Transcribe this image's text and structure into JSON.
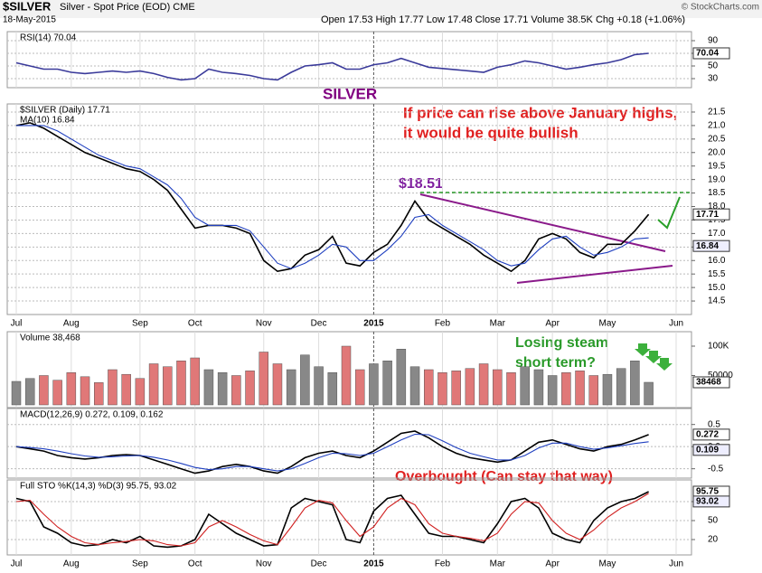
{
  "header": {
    "title": "$SILVER",
    "subtitle": "Silver - Spot Price (EOD) CME",
    "date": "18-May-2015",
    "quote": "Open 17.53  High 17.77  Low 17.48  Close 17.71  Volume 38.5K  Chg +0.18 (+1.06%)",
    "copyright": "© StockCharts.com"
  },
  "chart_data": [
    {
      "type": "line",
      "series": [
        {
          "name": "RSI(14) 70.04",
          "color": "#3a3a9a",
          "values": [
            55,
            50,
            45,
            45,
            40,
            38,
            40,
            42,
            40,
            42,
            38,
            32,
            28,
            30,
            45,
            40,
            38,
            35,
            30,
            28,
            40,
            50,
            52,
            55,
            45,
            45,
            52,
            55,
            62,
            55,
            48,
            46,
            44,
            42,
            40,
            48,
            52,
            58,
            55,
            50,
            45,
            48,
            52,
            55,
            60,
            68,
            70.04,
            null,
            null
          ]
        }
      ],
      "ylim": [
        20,
        100
      ],
      "yticks": [
        90,
        70,
        50,
        30
      ],
      "grid": true
    },
    {
      "type": "line",
      "annotations": [
        "SILVER",
        "If price can rise above January highs,",
        "it would be quite bullish",
        "$18.51"
      ],
      "categories": [
        "Jul",
        null,
        null,
        null,
        "Aug",
        null,
        null,
        null,
        null,
        "Sep",
        null,
        null,
        null,
        "Oct",
        null,
        null,
        null,
        null,
        "Nov",
        null,
        null,
        null,
        "Dec",
        null,
        null,
        null,
        "2015",
        null,
        null,
        null,
        null,
        "Feb",
        null,
        null,
        null,
        "Mar",
        null,
        null,
        null,
        "Apr",
        null,
        null,
        null,
        "May",
        null,
        null,
        null,
        null,
        "Jun"
      ],
      "series": [
        {
          "name": "$SILVER (Daily) 17.71",
          "color": "#000000",
          "values": [
            21.0,
            21.1,
            20.9,
            20.6,
            20.3,
            20.0,
            19.8,
            19.6,
            19.4,
            19.3,
            19.0,
            18.6,
            17.9,
            17.2,
            17.3,
            17.3,
            17.2,
            17.0,
            16.0,
            15.6,
            15.7,
            16.2,
            16.4,
            16.9,
            15.9,
            15.8,
            16.3,
            16.6,
            17.3,
            18.2,
            17.5,
            17.2,
            16.9,
            16.6,
            16.2,
            15.9,
            15.6,
            16.0,
            16.8,
            17.0,
            16.8,
            16.3,
            16.1,
            16.6,
            16.6,
            17.1,
            17.71,
            null,
            null
          ]
        },
        {
          "name": "MA(10) 16.84",
          "color": "#2040c0",
          "values": [
            21.0,
            21.0,
            21.0,
            20.8,
            20.5,
            20.2,
            19.9,
            19.7,
            19.5,
            19.4,
            19.1,
            18.8,
            18.3,
            17.6,
            17.3,
            17.3,
            17.3,
            17.1,
            16.5,
            15.9,
            15.7,
            15.9,
            16.2,
            16.6,
            16.5,
            16.0,
            16.0,
            16.4,
            16.9,
            17.6,
            17.7,
            17.3,
            17.0,
            16.7,
            16.4,
            16.0,
            15.8,
            15.9,
            16.4,
            16.8,
            16.9,
            16.5,
            16.2,
            16.3,
            16.5,
            16.8,
            16.84,
            null,
            null
          ]
        }
      ],
      "ylim": [
        14.1,
        21.7
      ],
      "yticks": [
        {
          "value": 21.5,
          "label": "21.5"
        },
        {
          "value": 21,
          "label": "21.0"
        },
        20.5,
        {
          "value": 20,
          "label": "20.0"
        },
        19.5,
        {
          "value": 19,
          "label": "19.0"
        },
        18.5,
        {
          "value": 18,
          "label": "18.0"
        },
        17.5,
        {
          "value": 17,
          "label": "17.0"
        },
        16.5,
        {
          "value": 16,
          "label": "16.0"
        },
        15.5,
        {
          "value": 15,
          "label": "15.0"
        },
        14.5
      ],
      "grid": true
    },
    {
      "type": "bar",
      "annotations": [
        "Losing steam",
        "short term?"
      ],
      "series": [
        {
          "name": "Volume 38,468",
          "up_color": "#888888",
          "down_color": "#e07878",
          "values": [
            40000,
            45000,
            50000,
            42000,
            55000,
            48000,
            38000,
            60000,
            52000,
            45000,
            70000,
            65000,
            75000,
            80000,
            60000,
            55000,
            50000,
            58000,
            90000,
            70000,
            60000,
            85000,
            65000,
            55000,
            100000,
            60000,
            70000,
            75000,
            95000,
            65000,
            60000,
            55000,
            58000,
            62000,
            70000,
            60000,
            55000,
            65000,
            60000,
            50000,
            55000,
            58000,
            50000,
            52000,
            62000,
            75000,
            38468,
            null,
            null
          ]
        }
      ],
      "ylim": [
        0,
        120000
      ],
      "yticks": [
        {
          "value": 100000,
          "label": "100K"
        },
        50000
      ],
      "grid": false
    },
    {
      "type": "line",
      "series": [
        {
          "name": "MACD(12,26,9) 0.272, 0.109, 0.162",
          "color": "#000000",
          "values": [
            0.0,
            -0.05,
            -0.1,
            -0.2,
            -0.25,
            -0.28,
            -0.25,
            -0.2,
            -0.18,
            -0.2,
            -0.3,
            -0.4,
            -0.5,
            -0.6,
            -0.55,
            -0.45,
            -0.4,
            -0.45,
            -0.55,
            -0.6,
            -0.45,
            -0.25,
            -0.15,
            -0.1,
            -0.2,
            -0.25,
            -0.1,
            0.1,
            0.3,
            0.35,
            0.2,
            0.0,
            -0.15,
            -0.25,
            -0.3,
            -0.35,
            -0.3,
            -0.1,
            0.1,
            0.15,
            0.05,
            -0.05,
            -0.1,
            0.0,
            0.05,
            0.15,
            0.272,
            null,
            null
          ]
        },
        {
          "color": "#2040c0",
          "values": [
            0.0,
            -0.02,
            -0.05,
            -0.1,
            -0.16,
            -0.21,
            -0.24,
            -0.23,
            -0.21,
            -0.2,
            -0.24,
            -0.3,
            -0.38,
            -0.47,
            -0.52,
            -0.5,
            -0.45,
            -0.45,
            -0.5,
            -0.55,
            -0.5,
            -0.38,
            -0.25,
            -0.15,
            -0.16,
            -0.2,
            -0.15,
            0.0,
            0.15,
            0.28,
            0.27,
            0.13,
            -0.02,
            -0.15,
            -0.23,
            -0.3,
            -0.3,
            -0.2,
            -0.03,
            0.08,
            0.08,
            0.0,
            -0.06,
            -0.03,
            0.02,
            0.07,
            0.109,
            null,
            null
          ]
        }
      ],
      "ylim": [
        -0.65,
        0.8
      ],
      "yticks": [
        0.5,
        {
          "value": 0,
          "label": "0.0"
        },
        -0.5
      ],
      "grid": true
    },
    {
      "type": "line",
      "annotations": [
        "Overbought  (Can stay that way)"
      ],
      "categories": [
        "Jul",
        null,
        null,
        null,
        "Aug",
        null,
        null,
        null,
        null,
        "Sep",
        null,
        null,
        null,
        "Oct",
        null,
        null,
        null,
        null,
        "Nov",
        null,
        null,
        null,
        "Dec",
        null,
        null,
        null,
        "2015",
        null,
        null,
        null,
        null,
        "Feb",
        null,
        null,
        null,
        "Mar",
        null,
        null,
        null,
        "Apr",
        null,
        null,
        null,
        "May",
        null,
        null,
        null,
        null,
        "Jun"
      ],
      "series": [
        {
          "name": "Full STO %K(14,3) %D(3) 95.75, 93.02",
          "color": "#000000",
          "values": [
            85,
            80,
            40,
            30,
            15,
            10,
            12,
            20,
            15,
            25,
            10,
            8,
            10,
            20,
            60,
            45,
            30,
            20,
            10,
            12,
            70,
            85,
            80,
            75,
            20,
            15,
            65,
            85,
            90,
            60,
            30,
            25,
            25,
            20,
            15,
            45,
            80,
            85,
            70,
            30,
            20,
            15,
            50,
            70,
            80,
            85,
            95.75,
            null,
            null
          ]
        },
        {
          "color": "#d02020",
          "values": [
            80,
            82,
            60,
            40,
            25,
            15,
            12,
            15,
            17,
            20,
            18,
            12,
            10,
            15,
            40,
            50,
            40,
            28,
            18,
            12,
            40,
            70,
            82,
            78,
            50,
            25,
            40,
            70,
            85,
            75,
            45,
            30,
            25,
            22,
            18,
            30,
            60,
            80,
            78,
            50,
            30,
            20,
            35,
            55,
            70,
            80,
            93.02,
            null,
            null
          ]
        }
      ],
      "ylim": [
        0,
        110
      ],
      "yticks": [
        80,
        50,
        20
      ],
      "grid": true
    }
  ]
}
